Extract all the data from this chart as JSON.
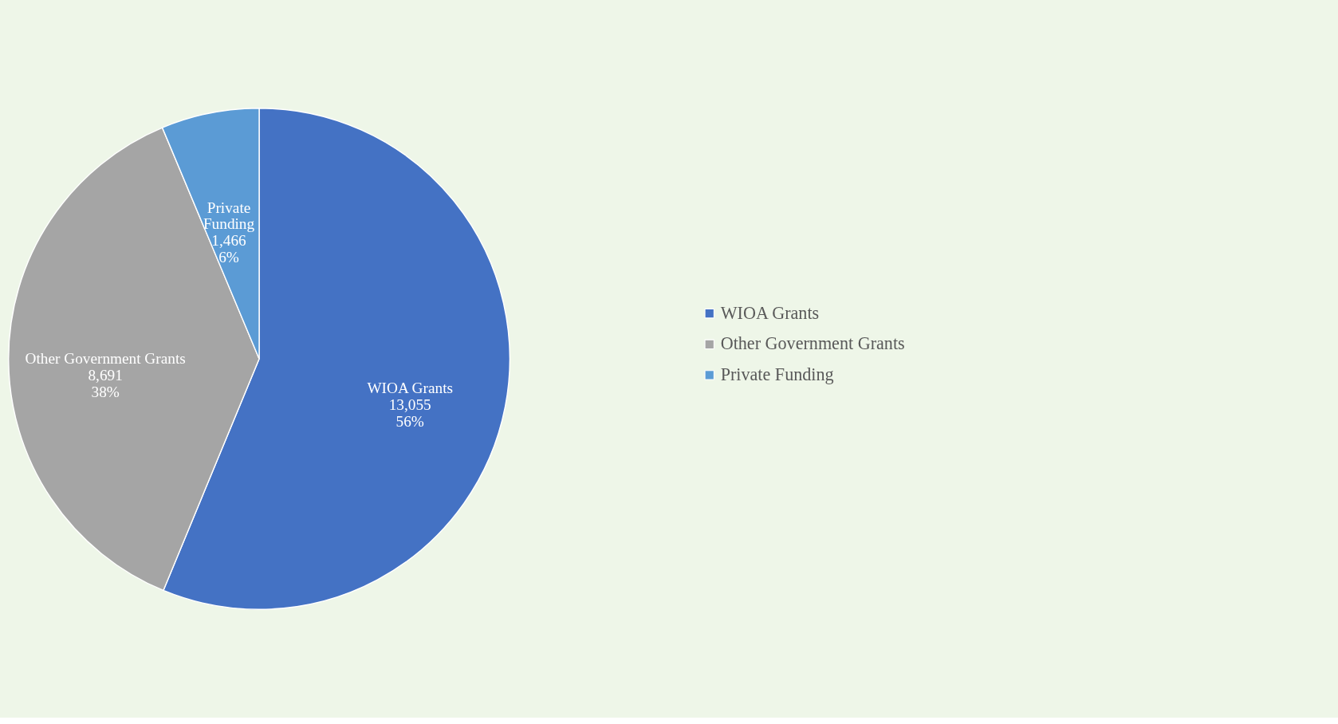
{
  "chart_data": {
    "type": "pie",
    "categories": [
      "WIOA Grants",
      "Other Government Grants",
      "Private Funding"
    ],
    "values": [
      13055,
      8691,
      1466
    ],
    "colors": [
      "#4472c4",
      "#a5a5a5",
      "#5b9bd5"
    ],
    "value_labels": [
      "13,055\n56%",
      "8,691\n38%",
      "1,466\n6%"
    ],
    "legend": "right"
  }
}
